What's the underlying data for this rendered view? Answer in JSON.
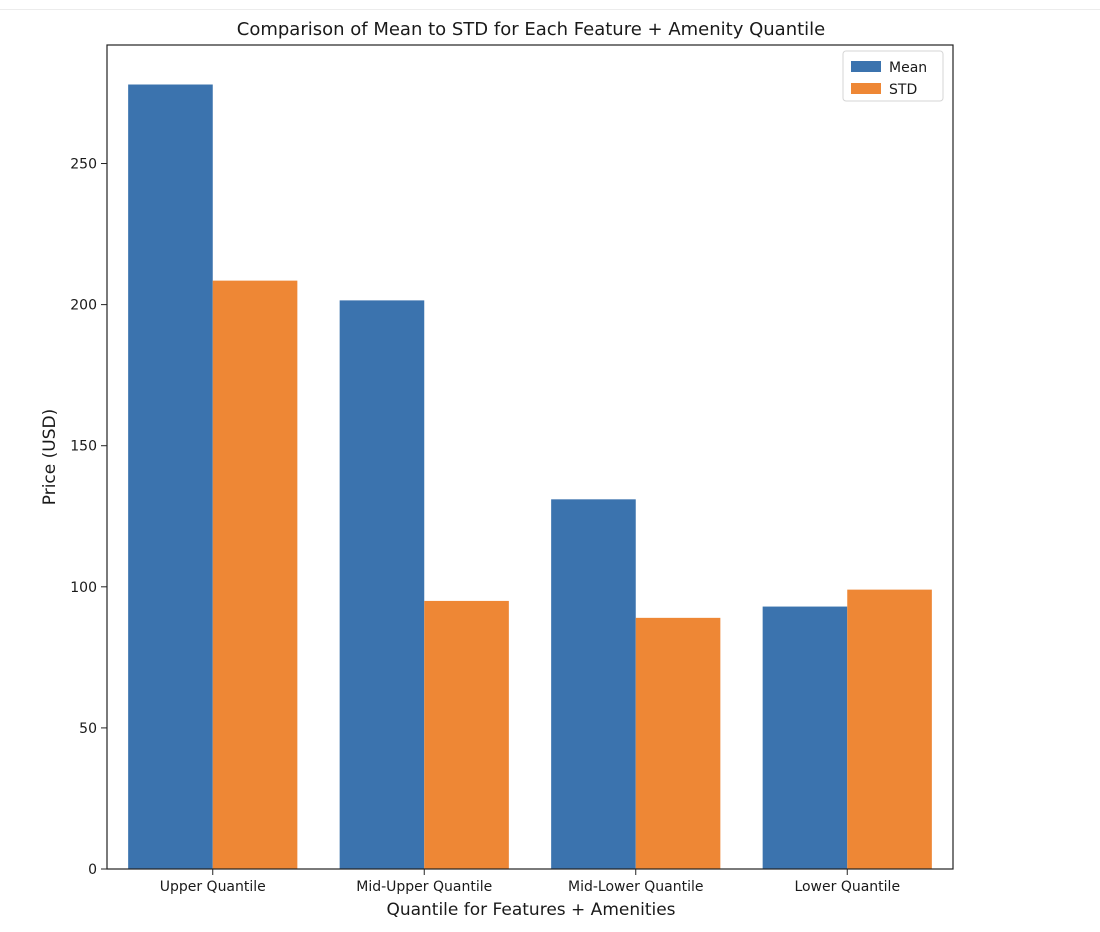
{
  "chart_data": {
    "type": "bar",
    "title": "Comparison of Mean to STD for Each Feature + Amenity Quantile",
    "xlabel": "Quantile for Features + Amenities",
    "ylabel": "Price (USD)",
    "categories": [
      "Upper Quantile",
      "Mid-Upper Quantile",
      "Mid-Lower Quantile",
      "Lower Quantile"
    ],
    "series": [
      {
        "name": "Mean",
        "color": "#3b73ae",
        "values": [
          278,
          201.5,
          131,
          93
        ]
      },
      {
        "name": "STD",
        "color": "#ee8735",
        "values": [
          208.5,
          95,
          89,
          99
        ]
      }
    ],
    "ylim": [
      0,
      292
    ],
    "yticks": [
      0,
      50,
      100,
      150,
      200,
      250
    ],
    "grid": false,
    "legend_position": "top-right"
  }
}
